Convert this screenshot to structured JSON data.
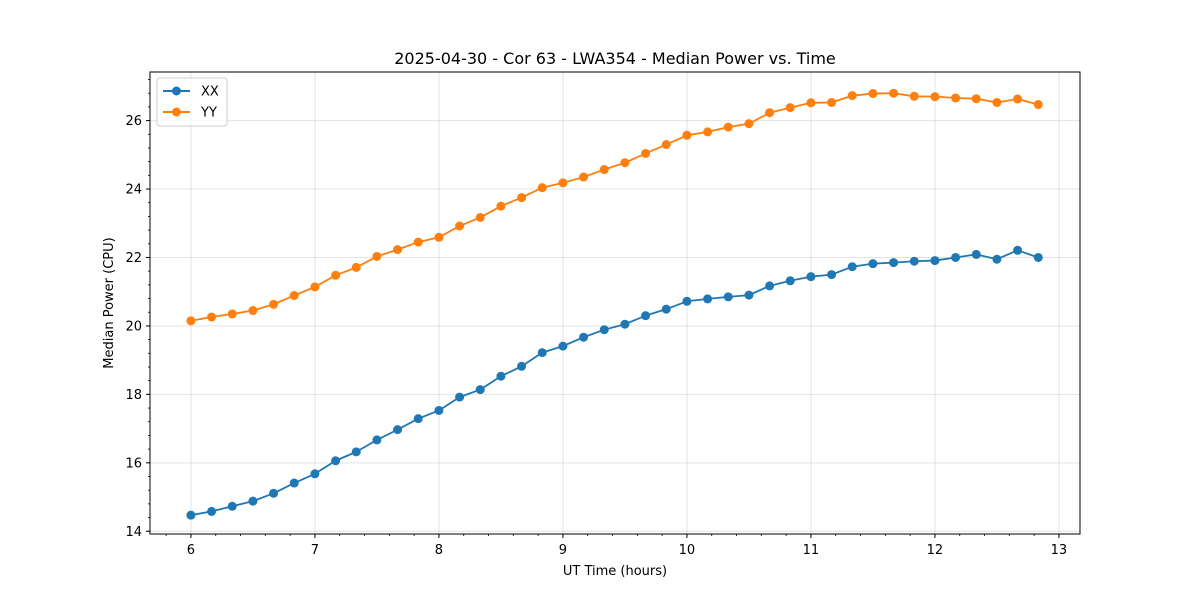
{
  "chart_data": {
    "type": "line",
    "title": "2025-04-30 - Cor 63 - LWA354 - Median Power vs. Time",
    "xlabel": "UT Time (hours)",
    "ylabel": "Median Power (CPU)",
    "xlim": [
      5.67,
      13.17
    ],
    "ylim": [
      13.92,
      27.42
    ],
    "grid": true,
    "legend_position": "upper-left",
    "x_ticks": [
      6,
      7,
      8,
      9,
      10,
      11,
      12,
      13
    ],
    "x_tick_labels": [
      "6",
      "7",
      "8",
      "9",
      "10",
      "11",
      "12",
      "13"
    ],
    "y_ticks": [
      14,
      16,
      18,
      20,
      22,
      24,
      26
    ],
    "y_tick_labels": [
      "14",
      "16",
      "18",
      "20",
      "22",
      "24",
      "26"
    ],
    "x_minor_tick_step": 0.2,
    "y_minor_tick_step": 0.4,
    "x": [
      6.0,
      6.1667,
      6.3333,
      6.5,
      6.6667,
      6.8333,
      7.0,
      7.1667,
      7.3333,
      7.5,
      7.6667,
      7.8333,
      8.0,
      8.1667,
      8.3333,
      8.5,
      8.6667,
      8.8333,
      9.0,
      9.1667,
      9.3333,
      9.5,
      9.6667,
      9.8333,
      10.0,
      10.1667,
      10.3333,
      10.5,
      10.6667,
      10.8333,
      11.0,
      11.1667,
      11.3333,
      11.5,
      11.6667,
      11.8333,
      12.0,
      12.1667,
      12.3333,
      12.5,
      12.6667,
      12.8333
    ],
    "series": [
      {
        "name": "XX",
        "color": "#1f77b4",
        "values": [
          14.47,
          14.58,
          14.73,
          14.88,
          15.11,
          15.41,
          15.68,
          16.06,
          16.32,
          16.67,
          16.97,
          17.29,
          17.53,
          17.92,
          18.14,
          18.53,
          18.82,
          19.22,
          19.41,
          19.67,
          19.89,
          20.05,
          20.3,
          20.49,
          20.72,
          20.79,
          20.85,
          20.9,
          21.17,
          21.32,
          21.44,
          21.5,
          21.73,
          21.82,
          21.85,
          21.89,
          21.91,
          22.0,
          22.09,
          21.95,
          22.21,
          22.0
        ]
      },
      {
        "name": "YY",
        "color": "#ff7f0e",
        "values": [
          20.15,
          20.26,
          20.35,
          20.45,
          20.63,
          20.89,
          21.14,
          21.48,
          21.71,
          22.03,
          22.23,
          22.45,
          22.59,
          22.92,
          23.17,
          23.5,
          23.75,
          24.04,
          24.18,
          24.35,
          24.57,
          24.77,
          25.04,
          25.3,
          25.57,
          25.67,
          25.81,
          25.91,
          26.23,
          26.38,
          26.52,
          26.53,
          26.73,
          26.79,
          26.8,
          26.71,
          26.7,
          26.66,
          26.64,
          26.53,
          26.63,
          26.47
        ]
      }
    ]
  }
}
